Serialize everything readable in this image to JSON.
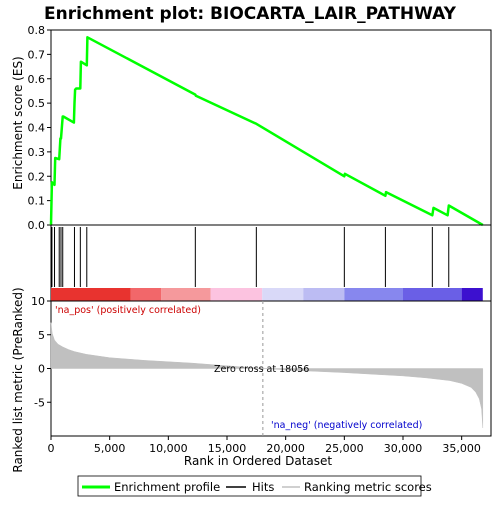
{
  "chart_data": {
    "type": "line",
    "title": "Enrichment plot: BIOCARTA_LAIR_PATHWAY",
    "xlabel": "Rank in Ordered Dataset",
    "es_panel": {
      "ylabel": "Enrichment score (ES)",
      "ylim": [
        0,
        0.8
      ],
      "yticks": [
        "0.0",
        "0.1",
        "0.2",
        "0.3",
        "0.4",
        "0.5",
        "0.6",
        "0.7",
        "0.8"
      ],
      "ytick_values": [
        0,
        0.1,
        0.2,
        0.3,
        0.4,
        0.5,
        0.6,
        0.7,
        0.8
      ],
      "series": [
        {
          "name": "Enrichment profile",
          "color": "#00ff00",
          "x": [
            0,
            80,
            300,
            360,
            700,
            800,
            850,
            1000,
            1050,
            1950,
            2000,
            2050,
            2150,
            2500,
            2550,
            3050,
            3100,
            12300,
            12350,
            17500,
            25000,
            25050,
            28500,
            28550,
            32500,
            32600,
            33800,
            33900,
            36800
          ],
          "y": [
            0.0,
            0.175,
            0.165,
            0.275,
            0.27,
            0.355,
            0.355,
            0.445,
            0.445,
            0.42,
            0.5,
            0.555,
            0.56,
            0.56,
            0.67,
            0.655,
            0.77,
            0.535,
            0.53,
            0.415,
            0.2,
            0.21,
            0.12,
            0.135,
            0.04,
            0.07,
            0.04,
            0.08,
            0.0
          ]
        }
      ]
    },
    "hits": {
      "name": "Hits",
      "x": [
        80,
        300,
        700,
        850,
        1000,
        2000,
        2500,
        3050,
        12300,
        17500,
        25000,
        28500,
        32500,
        33900
      ]
    },
    "ranking_panel": {
      "ylabel": "Ranked list metric (PreRanked)",
      "ylim": [
        -10,
        10
      ],
      "yticks": [
        "-5",
        "0",
        "5",
        "10"
      ],
      "ytick_values": [
        -5,
        0,
        5,
        10
      ],
      "series": [
        {
          "name": "Ranking metric scores",
          "color": "#c0c0c0",
          "x": [
            0,
            100,
            300,
            600,
            1000,
            1500,
            2000,
            3000,
            5000,
            8000,
            12000,
            15000,
            18056,
            21000,
            25000,
            28000,
            30000,
            32000,
            34000,
            35000,
            35800,
            36200,
            36500,
            36700,
            36800
          ],
          "y": [
            6.8,
            5.2,
            4.2,
            3.6,
            3.2,
            2.8,
            2.5,
            2.1,
            1.6,
            1.2,
            0.8,
            0.4,
            0.0,
            -0.3,
            -0.6,
            -0.9,
            -1.1,
            -1.4,
            -1.8,
            -2.2,
            -2.8,
            -3.5,
            -4.5,
            -6.0,
            -8.8
          ]
        }
      ],
      "pos_label": "'na_pos' (positively correlated)",
      "neg_label": "'na_neg' (negatively correlated)",
      "zero_cross_label": "Zero cross at 18056",
      "zero_cross": 18056
    },
    "xlim": [
      0,
      37500
    ],
    "xticks": [
      "0",
      "5,000",
      "10,000",
      "15,000",
      "20,000",
      "25,000",
      "30,000",
      "35,000"
    ],
    "xtick_values": [
      0,
      5000,
      10000,
      15000,
      20000,
      25000,
      30000,
      35000
    ],
    "color_bar": [
      {
        "from": 0,
        "to": 6800,
        "color": "#e8332f"
      },
      {
        "from": 6800,
        "to": 9400,
        "color": "#f2676a"
      },
      {
        "from": 9400,
        "to": 13600,
        "color": "#f5999c"
      },
      {
        "from": 13600,
        "to": 18000,
        "color": "#fcc3e0"
      },
      {
        "from": 18000,
        "to": 21500,
        "color": "#d9d9f8"
      },
      {
        "from": 21500,
        "to": 25000,
        "color": "#bcbcf3"
      },
      {
        "from": 25000,
        "to": 30000,
        "color": "#8787ee"
      },
      {
        "from": 30000,
        "to": 35000,
        "color": "#6a5fe6"
      },
      {
        "from": 35000,
        "to": 36800,
        "color": "#3c10cf"
      }
    ],
    "legend": {
      "placement": "bottom",
      "items": [
        {
          "label": "Enrichment profile",
          "color": "#00ff00"
        },
        {
          "label": "Hits",
          "color": "#000000"
        },
        {
          "label": "Ranking metric scores",
          "color": "#c0c0c0"
        }
      ]
    },
    "grid": false
  }
}
